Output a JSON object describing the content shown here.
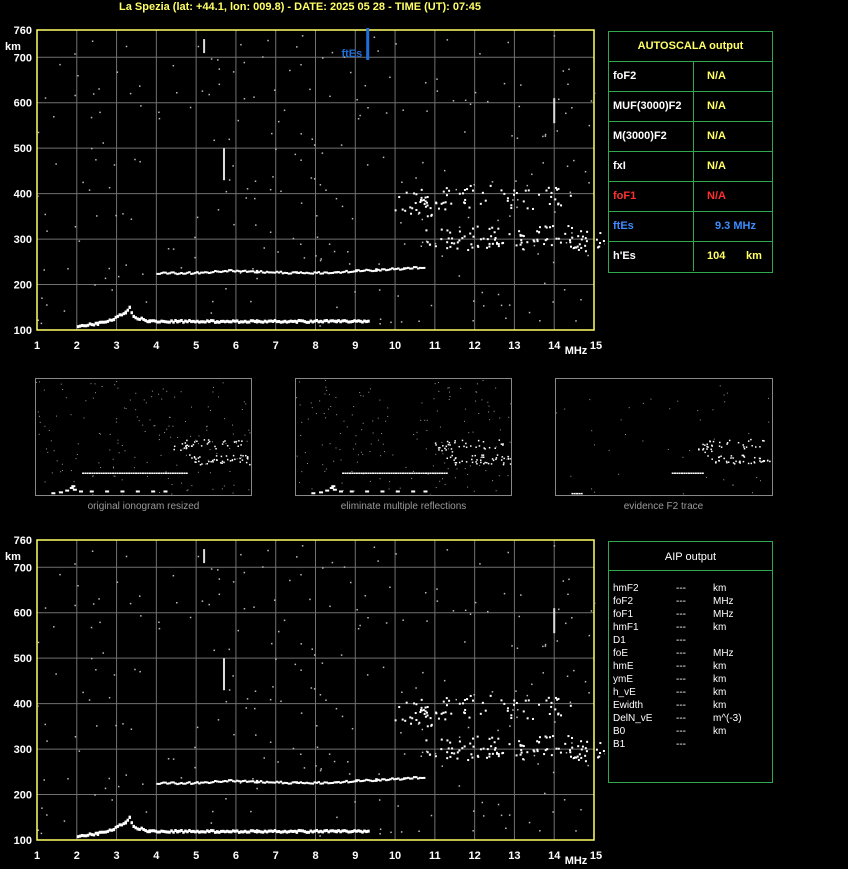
{
  "header": {
    "title": "La Spezia (lat: +44.1, lon: 009.8) - DATE: 2025 05 28 - TIME (UT): 07:45"
  },
  "ionogram": {
    "y_unit": "km",
    "x_unit": "MHz",
    "y_ticks": [
      "760",
      "700",
      "600",
      "500",
      "400",
      "300",
      "200",
      "100"
    ],
    "x_ticks": [
      "1",
      "2",
      "3",
      "4",
      "5",
      "6",
      "7",
      "8",
      "9",
      "10",
      "11",
      "12",
      "13",
      "14",
      "15"
    ],
    "marker_label": "ftEs",
    "colors": {
      "axes": "#ffff66",
      "grid": "#707070",
      "trace": "#ffffff",
      "marker": "#1e6fd9"
    }
  },
  "chart_data": {
    "type": "scatter",
    "xlabel": "MHz",
    "ylabel": "km",
    "xlim": [
      1,
      15
    ],
    "ylim": [
      100,
      760
    ],
    "grid": true,
    "marker": {
      "label": "ftEs",
      "x": 9.3
    },
    "series": [
      {
        "values": [
          [
            2.0,
            110
          ],
          [
            2.5,
            115
          ],
          [
            2.9,
            125
          ],
          [
            3.2,
            140
          ],
          [
            3.3,
            150
          ],
          [
            3.4,
            130
          ],
          [
            3.8,
            120
          ],
          [
            4.5,
            120
          ],
          [
            5.5,
            120
          ],
          [
            6.5,
            120
          ],
          [
            7.5,
            120
          ],
          [
            8.5,
            120
          ],
          [
            9.3,
            120
          ]
        ]
      },
      {
        "values": [
          [
            4.0,
            225
          ],
          [
            5.0,
            225
          ],
          [
            5.8,
            230
          ],
          [
            6.5,
            228
          ],
          [
            7.5,
            225
          ],
          [
            8.5,
            226
          ],
          [
            9.0,
            230
          ],
          [
            9.5,
            232
          ],
          [
            10.2,
            235
          ],
          [
            10.7,
            238
          ]
        ]
      },
      {
        "values": [
          [
            10.3,
            380
          ],
          [
            10.8,
            370
          ],
          [
            11.2,
            310
          ],
          [
            11.7,
            300
          ],
          [
            12.3,
            305
          ],
          [
            12.8,
            310
          ],
          [
            13.4,
            305
          ],
          [
            14.0,
            310
          ],
          [
            14.6,
            305
          ],
          [
            14.9,
            300
          ],
          [
            11.0,
            390
          ],
          [
            12.0,
            395
          ],
          [
            13.0,
            390
          ],
          [
            14.0,
            395
          ]
        ]
      }
    ]
  },
  "autoscala": {
    "title": "AUTOSCALA output",
    "rows": [
      {
        "label": "foF2",
        "value": "N/A",
        "color": "#ffff66"
      },
      {
        "label": "MUF(3000)F2",
        "value": "N/A",
        "color": "#ffff66"
      },
      {
        "label": "M(3000)F2",
        "value": "N/A",
        "color": "#ffff66"
      },
      {
        "label": "fxI",
        "value": "N/A",
        "color": "#ffff66"
      },
      {
        "label": "foF1",
        "value": "N/A",
        "color": "#ff3030"
      },
      {
        "label": "ftEs",
        "value": "9.3 MHz",
        "color": "#3c8cff"
      },
      {
        "label": "h'Es",
        "value": "104",
        "unit": "km",
        "color": "#ffff66"
      }
    ]
  },
  "thumbnails": [
    {
      "caption": "original ionogram resized"
    },
    {
      "caption": "eliminate multiple reflections"
    },
    {
      "caption": "evidence F2 trace"
    }
  ],
  "aip": {
    "title": "AIP output",
    "rows": [
      {
        "param": "hmF2",
        "value": "---",
        "unit": "km"
      },
      {
        "param": "foF2",
        "value": "---",
        "unit": "MHz"
      },
      {
        "param": "foF1",
        "value": "---",
        "unit": "MHz"
      },
      {
        "param": "hmF1",
        "value": "---",
        "unit": "km"
      },
      {
        "param": "D1",
        "value": "---",
        "unit": ""
      },
      {
        "param": "foE",
        "value": "---",
        "unit": "MHz"
      },
      {
        "param": "hmE",
        "value": "---",
        "unit": "km"
      },
      {
        "param": "ymE",
        "value": "---",
        "unit": "km"
      },
      {
        "param": "h_vE",
        "value": "---",
        "unit": "km"
      },
      {
        "param": "Ewidth",
        "value": "---",
        "unit": "km"
      },
      {
        "param": "DelN_vE",
        "value": "---",
        "unit": "m^(-3)"
      },
      {
        "param": "B0",
        "value": "---",
        "unit": "km"
      },
      {
        "param": "B1",
        "value": "---",
        "unit": ""
      }
    ]
  }
}
